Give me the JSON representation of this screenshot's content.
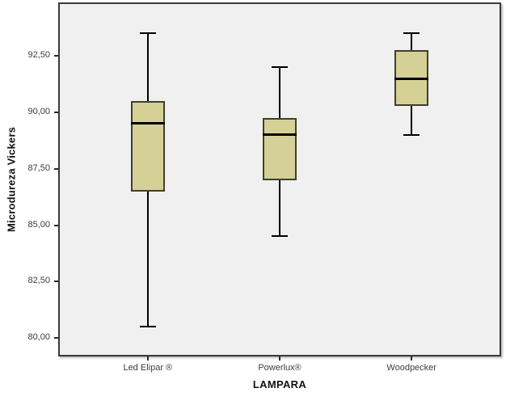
{
  "chart_data": {
    "type": "boxplot",
    "title": "",
    "xlabel": "LAMPARA",
    "ylabel": "Microdureza Vickers",
    "categories": [
      "Led Elipar ®",
      "Powerlux®",
      "Woodpecker"
    ],
    "series": [
      {
        "name": "Led Elipar ®",
        "whisker_low": 80.5,
        "q1": 86.5,
        "median": 89.5,
        "q3": 90.5,
        "whisker_high": 93.5
      },
      {
        "name": "Powerlux®",
        "whisker_low": 84.5,
        "q1": 87.0,
        "median": 89.0,
        "q3": 89.75,
        "whisker_high": 92.0
      },
      {
        "name": "Woodpecker",
        "whisker_low": 89.0,
        "q1": 90.3,
        "median": 91.5,
        "q3": 92.75,
        "whisker_high": 93.5
      }
    ],
    "y_ticks": [
      {
        "value": 80.0,
        "label": "80,00"
      },
      {
        "value": 82.5,
        "label": "82,50"
      },
      {
        "value": 85.0,
        "label": "85,00"
      },
      {
        "value": 87.5,
        "label": "87,50"
      },
      {
        "value": 90.0,
        "label": "90,00"
      },
      {
        "value": 92.5,
        "label": "92,50"
      }
    ],
    "ylim": [
      79.25,
      94.8
    ],
    "grid": false,
    "legend": "none",
    "colors": {
      "box_fill": "#d5d096",
      "box_border": "#3f3f2e",
      "median": "#000000",
      "whisker": "#000000",
      "plot_bg": "#f0f0f0",
      "frame_border": "#3a3a3a",
      "tick_label": "#3d3d3d",
      "axis_title": "#121212",
      "page_bg": "#ffffff"
    }
  }
}
